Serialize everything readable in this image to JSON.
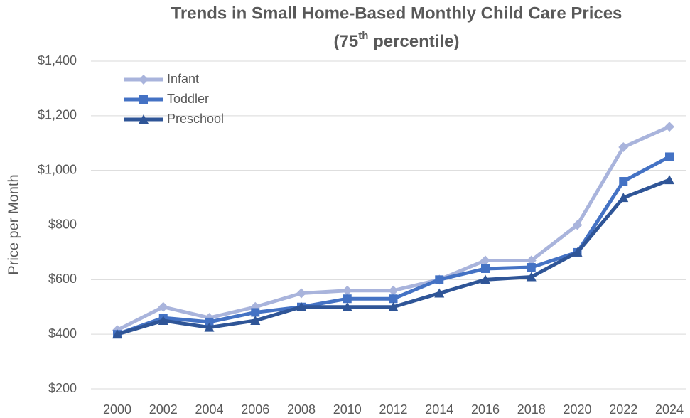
{
  "chart_data": {
    "type": "line",
    "title": "Trends in Small Home-Based Monthly Child Care Prices",
    "subtitle_parts": [
      "(75",
      "th",
      " percentile)"
    ],
    "y_label": "Price per Month",
    "categories": [
      "2000",
      "2002",
      "2004",
      "2006",
      "2008",
      "2010",
      "2012",
      "2014",
      "2016",
      "2018",
      "2020",
      "2022",
      "2024"
    ],
    "series": [
      {
        "name": "Infant",
        "color": "#a9b4dc",
        "marker": "diamond",
        "values": [
          415,
          500,
          460,
          500,
          550,
          560,
          560,
          600,
          670,
          670,
          800,
          1085,
          1160
        ]
      },
      {
        "name": "Toddler",
        "color": "#4472c4",
        "marker": "square",
        "values": [
          400,
          460,
          445,
          480,
          500,
          530,
          530,
          600,
          640,
          645,
          700,
          960,
          1050
        ]
      },
      {
        "name": "Preschool",
        "color": "#2f5597",
        "marker": "triangle",
        "values": [
          400,
          450,
          425,
          450,
          500,
          500,
          500,
          550,
          600,
          610,
          700,
          900,
          965
        ]
      }
    ],
    "ylim": [
      200,
      1400
    ],
    "yticks": [
      {
        "value": 200,
        "label": "$200"
      },
      {
        "value": 400,
        "label": "$400"
      },
      {
        "value": 600,
        "label": "$600"
      },
      {
        "value": 800,
        "label": "$800"
      },
      {
        "value": 1000,
        "label": "$1,000"
      },
      {
        "value": 1200,
        "label": "$1,200"
      },
      {
        "value": 1400,
        "label": "$1,400"
      }
    ],
    "grid": true,
    "legend": "upper left"
  }
}
